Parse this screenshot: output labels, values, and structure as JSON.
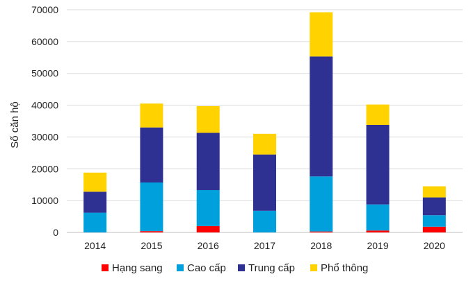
{
  "chart_data": {
    "type": "bar",
    "stacked": true,
    "categories": [
      "2014",
      "2015",
      "2016",
      "2017",
      "2018",
      "2019",
      "2020"
    ],
    "series": [
      {
        "name": "Hạng sang",
        "color": "#ff0000",
        "values": [
          0,
          400,
          2000,
          0,
          300,
          600,
          1800
        ]
      },
      {
        "name": "Cao cấp",
        "color": "#00a0dc",
        "values": [
          6200,
          15300,
          11300,
          6800,
          17300,
          8200,
          3600
        ]
      },
      {
        "name": "Trung cấp",
        "color": "#2e3192",
        "values": [
          6600,
          17300,
          18000,
          17700,
          37700,
          25000,
          5600
        ]
      },
      {
        "name": "Phổ thông",
        "color": "#ffd200",
        "values": [
          6000,
          7500,
          8400,
          6500,
          13900,
          6400,
          3500
        ]
      }
    ],
    "ylabel": "Số căn hộ",
    "ylim": [
      0,
      70000
    ],
    "yticks": [
      "0",
      "10000",
      "20000",
      "30000",
      "40000",
      "50000",
      "60000",
      "70000"
    ],
    "grid": true,
    "legend_position": "bottom"
  }
}
